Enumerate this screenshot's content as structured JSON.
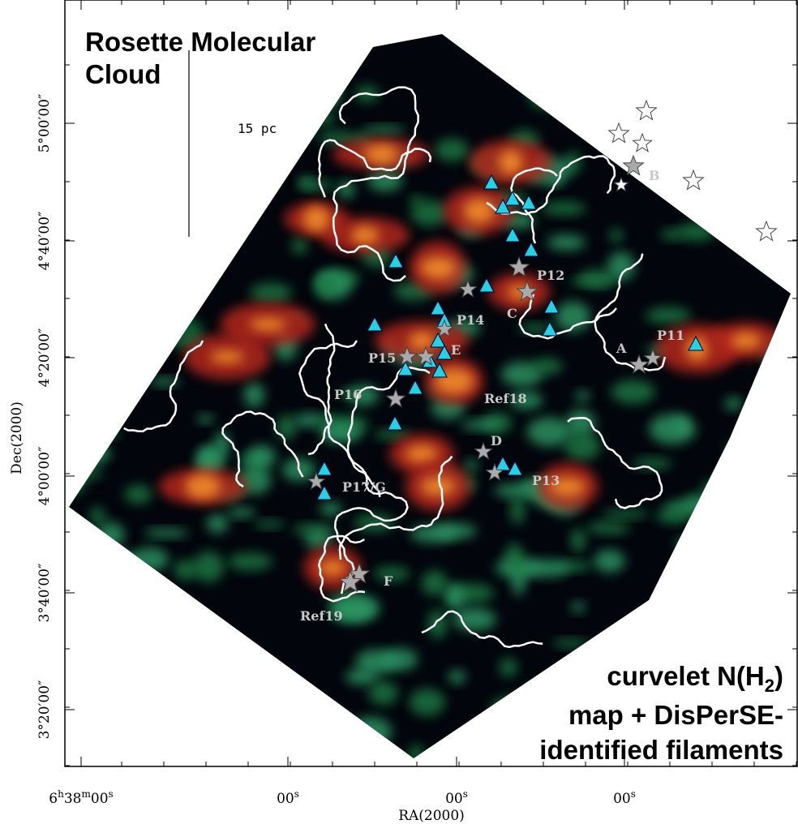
{
  "title_lines": [
    "Rosette Molecular",
    "Cloud"
  ],
  "scale_label": "15 pc",
  "axes": {
    "y_label": "Dec(2000)",
    "x_label": "RA(2000)",
    "y_ticks": [
      "5°00′00″",
      "4°40′00″",
      "4°20′00″",
      "4°00′00″",
      "3°40′00″",
      "3°20′00″"
    ],
    "x_ticks": [
      [
        "6",
        "h",
        "38",
        "m",
        "00",
        "s"
      ],
      [
        "00",
        "s"
      ],
      [
        "00",
        "s"
      ],
      [
        "00",
        "s"
      ]
    ]
  },
  "source_labels": [
    "B",
    "P12",
    "C",
    "P14",
    "P11",
    "A",
    "P15",
    "E",
    "P16",
    "Ref18",
    "D",
    "P13",
    "P17/G",
    "F",
    "Ref19"
  ],
  "caption": {
    "line1": [
      "curvelet N(H",
      "2",
      ")"
    ],
    "line2": "map + DisPerSE-",
    "line3": "identified filaments"
  }
}
